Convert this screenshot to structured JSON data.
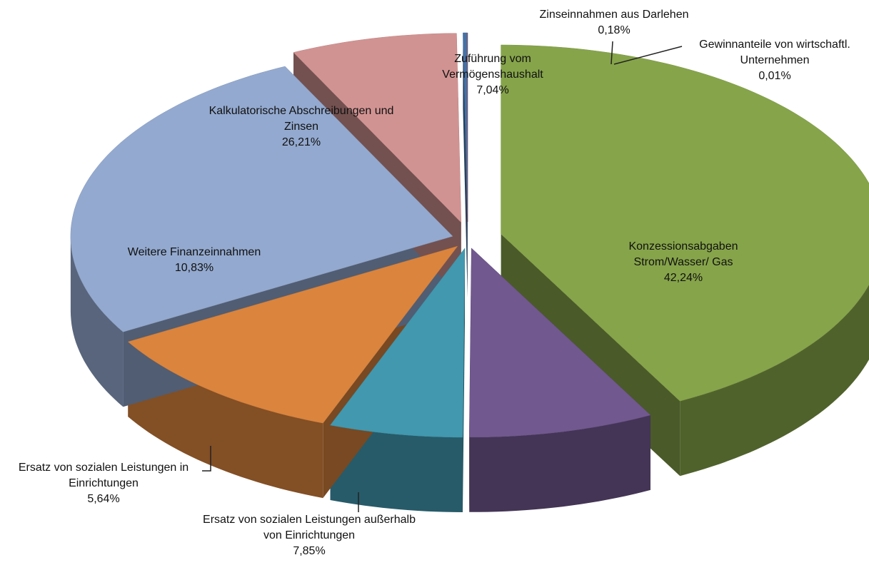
{
  "chart_data": {
    "type": "pie",
    "categories": [
      "Konzessionsabgaben Strom/Wasser/ Gas",
      "Ersatz von sozialen Leistungen außerhalb von Einrichtungen",
      "Ersatz von sozialen Leistungen in Einrichtungen",
      "Weitere Finanzeinnahmen",
      "Kalkulatorische Abschreibungen und Zinsen",
      "Zuführung vom Vermögenshaushalt",
      "Zinseinnahmen aus Darlehen",
      "Gewinnanteile von wirtschaftl. Unternehmen"
    ],
    "values": [
      42.24,
      7.85,
      5.64,
      10.83,
      26.21,
      7.04,
      0.18,
      0.01
    ],
    "value_labels": [
      "42,24%",
      "7,85%",
      "5,64%",
      "10,83%",
      "26,21%",
      "7,04%",
      "0,18%",
      "0,01%"
    ],
    "colors": [
      "#86a44a",
      "#71588f",
      "#4198af",
      "#db843d",
      "#93a9cf",
      "#d19392",
      "#4572a7",
      "#aa4643"
    ]
  }
}
